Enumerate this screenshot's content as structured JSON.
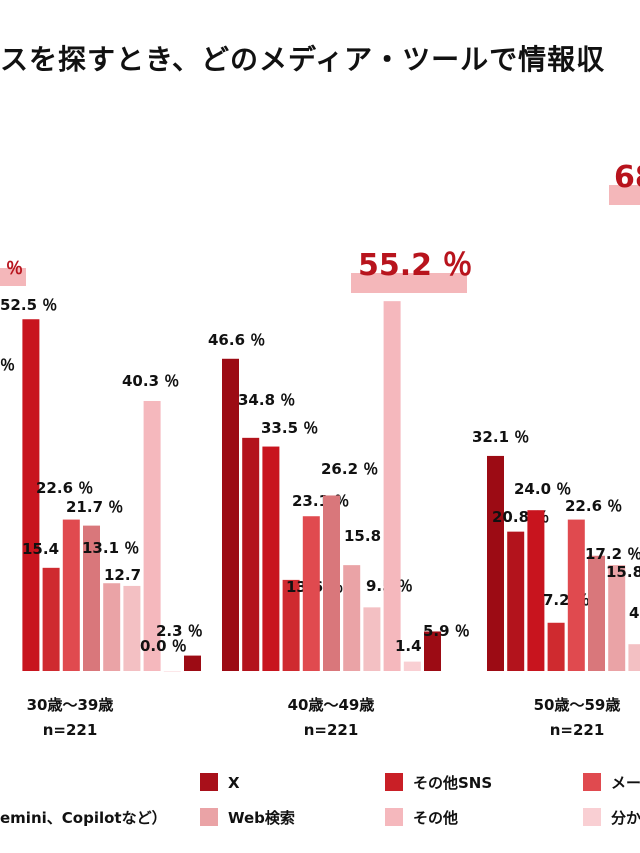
{
  "title": "スを探すとき、どのメディア・ツールで情報収",
  "chart_data": {
    "type": "bar",
    "series": [
      {
        "name": "X",
        "color": "#9c0b14"
      },
      {
        "name": "",
        "color": "#b3131c"
      },
      {
        "name": "",
        "color": "#c8141e"
      },
      {
        "name": "その他SNS",
        "color": "#cf2a2f"
      },
      {
        "name": "メー",
        "color": "#e04a4f"
      },
      {
        "name": "",
        "color": "#d9777b"
      },
      {
        "name": "Web検索",
        "color": "#eaa3a6"
      },
      {
        "name": "",
        "color": "#f3c0c3"
      },
      {
        "name": "その他",
        "color": "#f5b8bd"
      },
      {
        "name": "分か",
        "color": "#f9cfd3"
      }
    ],
    "groups": [
      {
        "label": "30歳〜39歳",
        "n": "n=221",
        "values": [
          null,
          null,
          52.5,
          15.4,
          22.6,
          21.7,
          13.1,
          12.7,
          40.3,
          0.0,
          2.3
        ],
        "labels": [
          "",
          "",
          "52.5 ％",
          "15.4 ％",
          "22.6 ％",
          "21.7 ％",
          "13.1 ％",
          "12.7 ％",
          "40.3 ％",
          "0.0 ％",
          "2.3 ％"
        ],
        "highlight": "％"
      },
      {
        "label": "40歳〜49歳",
        "n": "n=221",
        "values": [
          46.6,
          34.8,
          33.5,
          13.6,
          23.1,
          26.2,
          15.8,
          9.5,
          55.2,
          1.4,
          5.9
        ],
        "labels": [
          "46.6 ％",
          "34.8 ％",
          "33.5 ％",
          "13.6 ％",
          "23.1 ％",
          "26.2 ％",
          "15.8 ％",
          "9.5 ％",
          "",
          "1.4 ％",
          "5.9 ％"
        ],
        "highlight": "55.2 ％"
      },
      {
        "label": "50歳〜59歳",
        "n": "n=221",
        "values": [
          32.1,
          20.8,
          24.0,
          7.2,
          22.6,
          17.2,
          15.8,
          4.0
        ],
        "labels": [
          "32.1 ％",
          "20.8 ％",
          "24.0 ％",
          "7.2 ％",
          "22.6 ％",
          "17.2 ％",
          "15.8",
          "4"
        ],
        "highlight": "68"
      }
    ],
    "legend": [
      {
        "label": "X",
        "color": "#a8101a"
      },
      {
        "label": "その他SNS",
        "color": "#c91f26"
      },
      {
        "label": "メー",
        "color": "#e04a4f"
      },
      {
        "label": "Web検索",
        "color": "#eaa3a6"
      },
      {
        "label": "その他",
        "color": "#f5b8bd"
      },
      {
        "label": "分か",
        "color": "#f9cfd3"
      }
    ],
    "legend_note": "emini、Copilotなど）"
  }
}
